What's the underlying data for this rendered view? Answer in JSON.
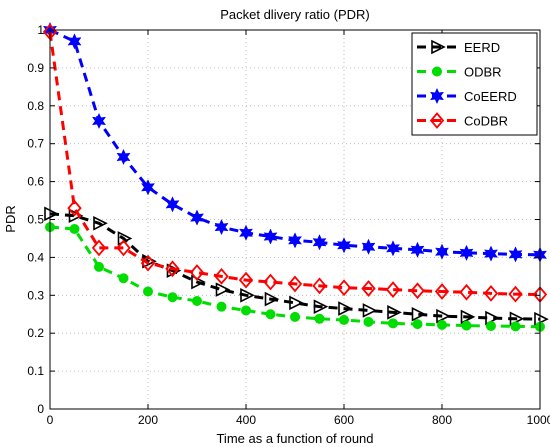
{
  "chart_data": {
    "type": "line",
    "title": "Packet dlivery ratio (PDR)",
    "xlabel": "Time as a function of round",
    "ylabel": "PDR",
    "xlim": [
      0,
      1000
    ],
    "ylim": [
      0,
      1
    ],
    "xticks": [
      0,
      200,
      400,
      600,
      800,
      1000
    ],
    "yticks": [
      0,
      0.1,
      0.2,
      0.3,
      0.4,
      0.5,
      0.6,
      0.7,
      0.8,
      0.9,
      1
    ],
    "grid": true,
    "legend_position": "top-right",
    "x": [
      0,
      50,
      100,
      150,
      200,
      250,
      300,
      350,
      400,
      450,
      500,
      550,
      600,
      650,
      700,
      750,
      800,
      850,
      900,
      950,
      1000
    ],
    "series": [
      {
        "name": "EERD",
        "color": "#000000",
        "marker": "triangle-right",
        "values": [
          0.515,
          0.51,
          0.49,
          0.45,
          0.39,
          0.365,
          0.335,
          0.315,
          0.3,
          0.29,
          0.28,
          0.27,
          0.265,
          0.26,
          0.255,
          0.25,
          0.245,
          0.243,
          0.24,
          0.238,
          0.237
        ]
      },
      {
        "name": "ODBR",
        "color": "#00dd00",
        "marker": "circle",
        "values": [
          0.48,
          0.475,
          0.375,
          0.345,
          0.31,
          0.295,
          0.285,
          0.27,
          0.26,
          0.25,
          0.243,
          0.238,
          0.235,
          0.23,
          0.226,
          0.224,
          0.222,
          0.22,
          0.219,
          0.218,
          0.217
        ]
      },
      {
        "name": "CoEERD",
        "color": "#0000ff",
        "marker": "hexagram",
        "values": [
          1.0,
          0.97,
          0.76,
          0.665,
          0.585,
          0.54,
          0.505,
          0.48,
          0.465,
          0.455,
          0.445,
          0.44,
          0.432,
          0.428,
          0.424,
          0.42,
          0.415,
          0.412,
          0.41,
          0.408,
          0.407
        ]
      },
      {
        "name": "CoDBR",
        "color": "#ff0000",
        "marker": "diamond",
        "values": [
          0.995,
          0.53,
          0.425,
          0.425,
          0.385,
          0.37,
          0.36,
          0.35,
          0.34,
          0.335,
          0.33,
          0.325,
          0.32,
          0.318,
          0.315,
          0.312,
          0.31,
          0.308,
          0.305,
          0.303,
          0.302
        ]
      }
    ]
  }
}
